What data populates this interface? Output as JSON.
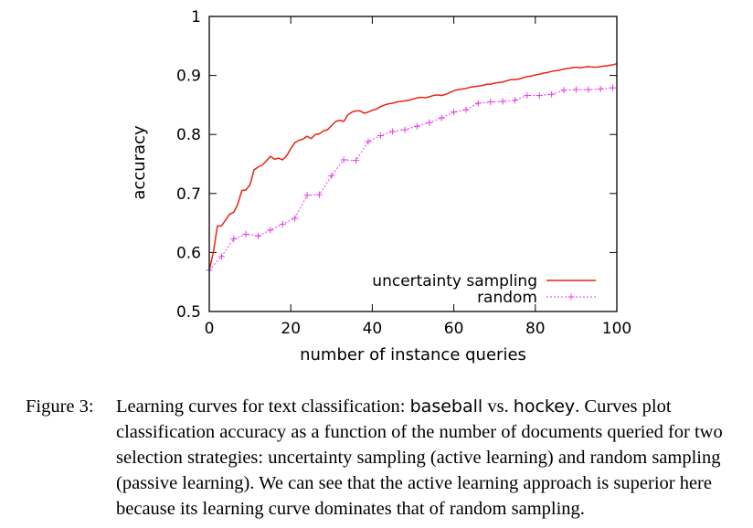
{
  "chart_data": {
    "type": "line",
    "xlabel": "number of instance queries",
    "ylabel": "accuracy",
    "xlim": [
      0,
      100
    ],
    "ylim": [
      0.5,
      1
    ],
    "xticks": [
      0,
      20,
      40,
      60,
      80,
      100
    ],
    "yticks": [
      0.5,
      0.6,
      0.7,
      0.8,
      0.9,
      1
    ],
    "x_tick_labels": [
      "0",
      "20",
      "40",
      "60",
      "80",
      "100"
    ],
    "y_tick_labels": [
      "0.5",
      "0.6",
      "0.7",
      "0.8",
      "0.9",
      "1"
    ],
    "grid": false,
    "legend_position": "bottom-right",
    "series": [
      {
        "name": "uncertainty sampling",
        "color": "#e8230f",
        "marker": "none",
        "x": [
          0,
          1,
          2,
          3,
          4,
          5,
          6,
          7,
          8,
          9,
          10,
          11,
          12,
          13,
          14,
          15,
          16,
          17,
          18,
          19,
          20,
          21,
          22,
          23,
          24,
          25,
          26,
          27,
          28,
          29,
          30,
          31,
          32,
          33,
          34,
          35,
          36,
          37,
          38,
          39,
          40,
          41,
          42,
          43,
          44,
          45,
          46,
          47,
          48,
          49,
          50,
          51,
          52,
          53,
          54,
          55,
          56,
          57,
          58,
          59,
          60,
          61,
          62,
          63,
          64,
          65,
          66,
          67,
          68,
          69,
          70,
          71,
          72,
          73,
          74,
          75,
          76,
          77,
          78,
          79,
          80,
          81,
          82,
          83,
          84,
          85,
          86,
          87,
          88,
          89,
          90,
          91,
          92,
          93,
          94,
          95,
          96,
          97,
          98,
          99,
          100
        ],
        "y": [
          0.57,
          0.6,
          0.645,
          0.645,
          0.655,
          0.665,
          0.668,
          0.682,
          0.705,
          0.706,
          0.715,
          0.74,
          0.745,
          0.748,
          0.755,
          0.763,
          0.758,
          0.76,
          0.757,
          0.764,
          0.776,
          0.786,
          0.79,
          0.792,
          0.797,
          0.793,
          0.8,
          0.801,
          0.806,
          0.808,
          0.815,
          0.822,
          0.824,
          0.822,
          0.833,
          0.838,
          0.84,
          0.84,
          0.836,
          0.838,
          0.841,
          0.843,
          0.847,
          0.85,
          0.852,
          0.853,
          0.855,
          0.856,
          0.857,
          0.858,
          0.86,
          0.862,
          0.863,
          0.862,
          0.864,
          0.866,
          0.867,
          0.866,
          0.868,
          0.871,
          0.874,
          0.876,
          0.877,
          0.878,
          0.88,
          0.881,
          0.882,
          0.883,
          0.885,
          0.885,
          0.887,
          0.888,
          0.889,
          0.891,
          0.893,
          0.893,
          0.894,
          0.896,
          0.898,
          0.899,
          0.901,
          0.902,
          0.904,
          0.905,
          0.907,
          0.908,
          0.909,
          0.911,
          0.912,
          0.913,
          0.914,
          0.913,
          0.914,
          0.915,
          0.914,
          0.914,
          0.915,
          0.916,
          0.917,
          0.918,
          0.92
        ]
      },
      {
        "name": "random",
        "color": "#e83ae8",
        "marker": "+",
        "x": [
          0,
          3,
          6,
          9,
          12,
          15,
          18,
          21,
          24,
          27,
          30,
          33,
          36,
          39,
          42,
          45,
          48,
          51,
          54,
          57,
          60,
          63,
          66,
          69,
          72,
          75,
          78,
          81,
          84,
          87,
          90,
          93,
          96,
          99
        ],
        "y": [
          0.57,
          0.593,
          0.623,
          0.631,
          0.628,
          0.638,
          0.648,
          0.658,
          0.697,
          0.698,
          0.73,
          0.757,
          0.756,
          0.788,
          0.798,
          0.805,
          0.808,
          0.814,
          0.82,
          0.828,
          0.838,
          0.842,
          0.853,
          0.855,
          0.856,
          0.858,
          0.866,
          0.866,
          0.868,
          0.875,
          0.876,
          0.876,
          0.877,
          0.879
        ]
      }
    ]
  },
  "caption": {
    "label": "Figure 3:",
    "text_before": "Learning curves for text classification: ",
    "class_a": "baseball",
    "vs": " vs. ",
    "class_b": "hockey",
    "text_after": ". Curves plot classification accuracy as a function of the number of documents queried for two selection strategies: uncertainty sampling (active learning) and random sampling (passive learning). We can see that the active learning approach is superior here because its learning curve dominates that of random sampling."
  }
}
